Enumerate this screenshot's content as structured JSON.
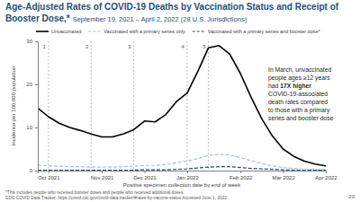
{
  "chart_data": {
    "type": "line",
    "title": "Age-Adjusted Rates of COVID-19 Deaths by Vaccination Status and Receipt of Booster Dose,*",
    "subtitle": "September 19, 2021 – April 2, 2022 (28 U.S. Jurisdictions)",
    "x_label": "Positive specimen collection date by end of week",
    "y_label": "Incidence per 100,000 population",
    "categories": [
      null,
      "Oct 2021",
      null,
      null,
      null,
      null,
      "Nov 2021",
      null,
      null,
      null,
      "Dec 2021",
      null,
      null,
      null,
      "Jan 2022",
      null,
      null,
      null,
      null,
      "Feb 2022",
      null,
      null,
      null,
      "Mar 2022",
      null,
      null,
      null,
      "Apr 2022"
    ],
    "series": [
      {
        "name": "Unvaccinated",
        "color": "#000000",
        "line_style": "solid",
        "values": [
          14.5,
          12.5,
          11,
          10,
          9.3,
          8.5,
          7.8,
          7.8,
          8.5,
          9.5,
          11.5,
          11.3,
          13,
          16,
          18,
          23,
          28.5,
          29,
          27,
          22.5,
          17,
          12,
          8,
          5,
          3.3,
          2.2,
          1.5,
          1.1
        ]
      },
      {
        "name": "Vaccinated with a primary series only",
        "color": "#9dc3e6",
        "line_style": "dashed",
        "values": [
          1.3,
          1.1,
          1.0,
          0.9,
          0.9,
          0.8,
          0.8,
          0.8,
          0.9,
          1.0,
          1.2,
          1.2,
          1.4,
          1.8,
          2.2,
          2.8,
          3.5,
          3.8,
          3.6,
          3.0,
          2.3,
          1.6,
          1.1,
          0.7,
          0.5,
          0.4,
          0.3,
          0.3
        ]
      },
      {
        "name": "Vaccinated with a primary series and booster dose*",
        "color": "#1f4e79",
        "line_style": "dashed",
        "values": [
          0.1,
          0.1,
          0.1,
          0.1,
          0.1,
          0.1,
          0.1,
          0.1,
          0.1,
          0.1,
          0.2,
          0.2,
          0.2,
          0.3,
          0.4,
          0.6,
          0.8,
          0.9,
          0.9,
          0.7,
          0.5,
          0.4,
          0.3,
          0.2,
          0.1,
          0.1,
          0.1,
          0.1
        ]
      }
    ],
    "ylim": [
      0,
      30
    ],
    "yticks": [
      0,
      10,
      20,
      30
    ],
    "grid": false,
    "legend": "top",
    "annotations": [
      {
        "text": "1",
        "x": 1
      },
      {
        "text": "2",
        "x": 5
      },
      {
        "text": "3",
        "x": 9
      },
      {
        "text": "4",
        "x": 14
      },
      {
        "text": "5",
        "x": 16
      }
    ],
    "callout": {
      "lines": [
        "In March, unvaccinated",
        "people ages ≥12 years",
        "had 17X higher",
        "COVID-19-associated",
        "death rates compared",
        "to those with a primary",
        "series and booster dose"
      ],
      "emphasis": "17X higher"
    },
    "footnotes": [
      "*This includes people who received booster doses and people who received additional doses.",
      "CDC COVID Data Tracker: https://covid.cdc.gov/covid-data-tracker/#rates-by-vaccine-status Accessed June 1, 2022"
    ],
    "page_number": "20"
  }
}
